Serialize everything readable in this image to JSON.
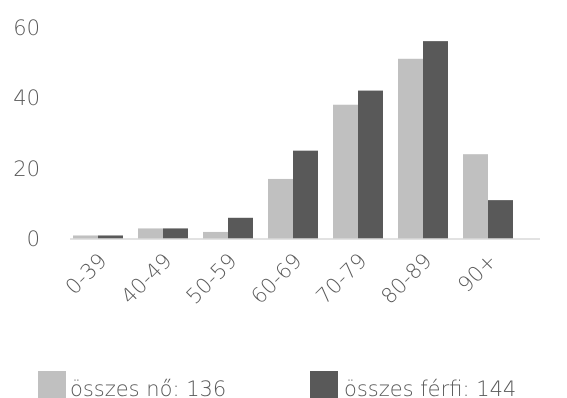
{
  "chart_data": {
    "type": "bar",
    "categories": [
      "0-39",
      "40-49",
      "50-59",
      "60-69",
      "70-79",
      "80-89",
      "90+"
    ],
    "series": [
      {
        "name": "összes nő: 136",
        "color": "#c0c0c0",
        "values": [
          1,
          3,
          2,
          17,
          38,
          51,
          24
        ]
      },
      {
        "name": "összes férfi: 144",
        "color": "#595959",
        "values": [
          1,
          3,
          6,
          25,
          42,
          56,
          11
        ]
      }
    ],
    "yticks": [
      "0",
      "20",
      "40",
      "60"
    ],
    "ylim": [
      0,
      60
    ],
    "grid": false,
    "legend_position": "bottom",
    "title": "",
    "xlabel": "",
    "ylabel": ""
  }
}
